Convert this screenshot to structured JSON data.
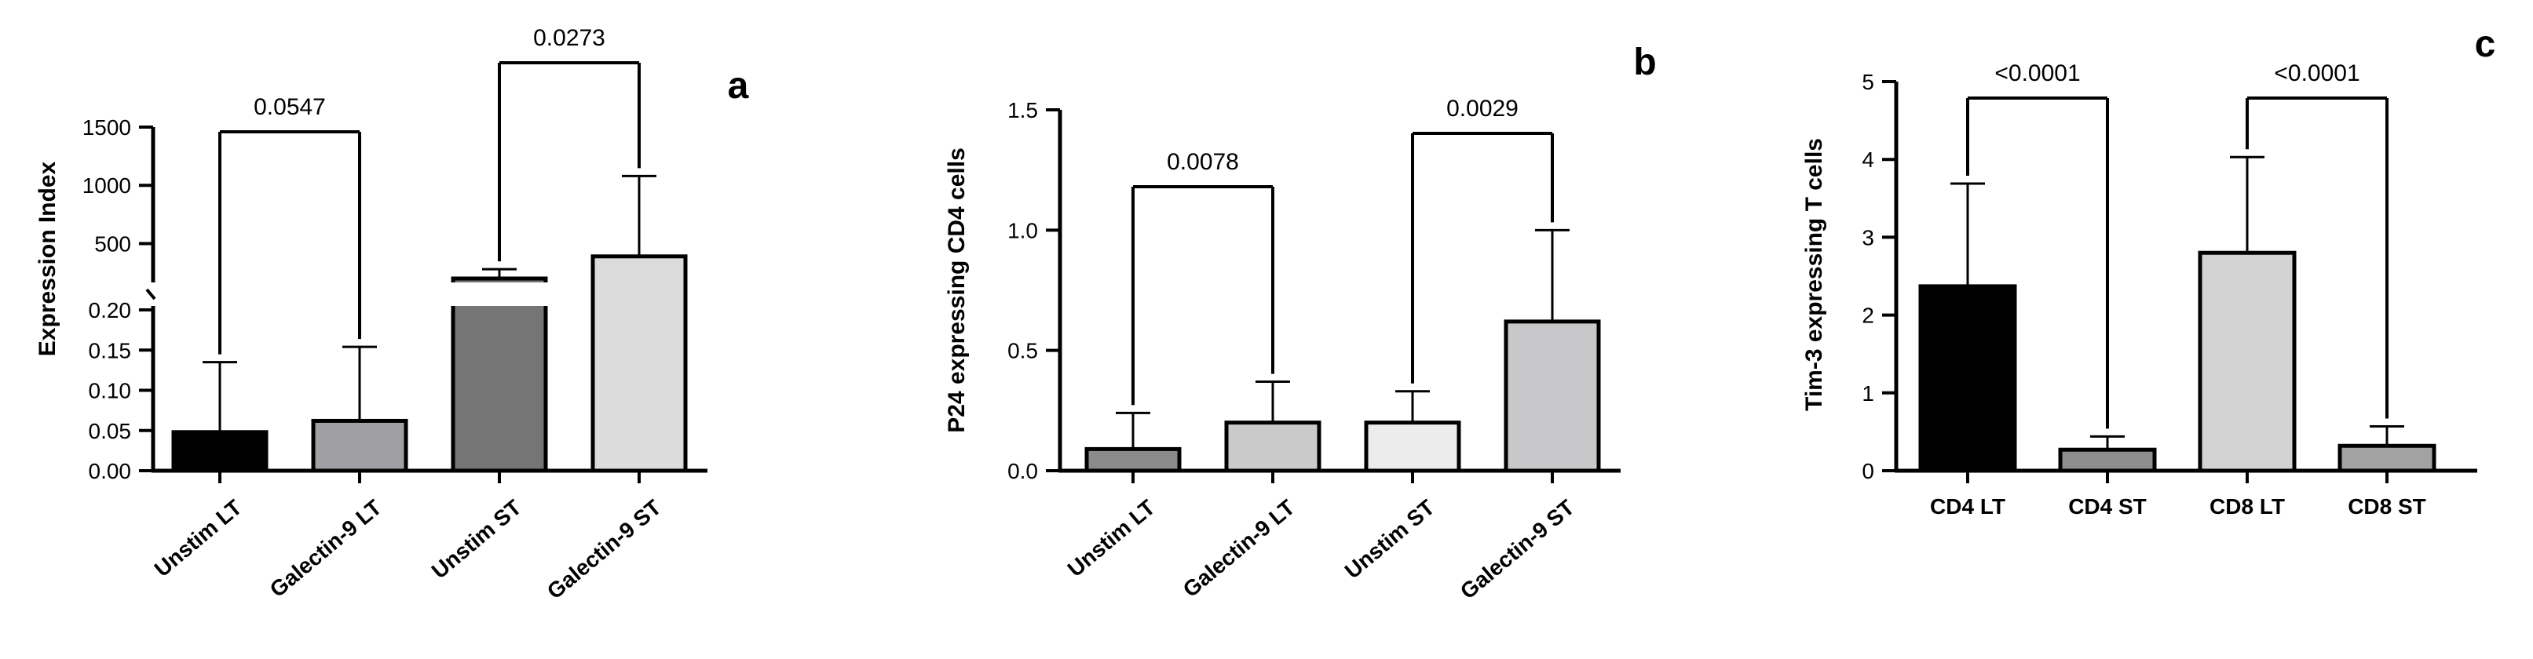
{
  "chart_data": [
    {
      "type": "bar",
      "panel_label": "a",
      "ylabel": "Expression Index",
      "categories": [
        "Unstim LT",
        "Galectin-9 LT",
        "Unstim ST",
        "Galectin-9 ST"
      ],
      "values": [
        0.048,
        0.062,
        200,
        390
      ],
      "errors": [
        0.087,
        0.092,
        80,
        690
      ],
      "colors": [
        "#000000",
        "#a0a0a4",
        "#757575",
        "#dcdcdc"
      ],
      "y_axis_break": true,
      "ylim_lower": [
        0,
        0.2
      ],
      "ylim_upper": [
        0,
        1500
      ],
      "yticks_lower": [
        "0.00",
        "0.05",
        "0.10",
        "0.15",
        "0.20"
      ],
      "yticks_upper": [
        "500",
        "1000",
        "1500"
      ],
      "comparisons": [
        {
          "from": "Unstim LT",
          "to": "Galectin-9 LT",
          "p": "0.0547"
        },
        {
          "from": "Unstim ST",
          "to": "Galectin-9 ST",
          "p": "0.0273"
        }
      ]
    },
    {
      "type": "bar",
      "panel_label": "b",
      "ylabel": "P24 expressing CD4 cells",
      "categories": [
        "Unstim LT",
        "Galectin-9 LT",
        "Unstim ST",
        "Galectin-9 ST"
      ],
      "values": [
        0.09,
        0.2,
        0.2,
        0.62
      ],
      "errors": [
        0.15,
        0.17,
        0.13,
        0.38
      ],
      "colors": [
        "#8a8a8a",
        "#cacaca",
        "#ececec",
        "#c8c8ca"
      ],
      "ylim": [
        0,
        1.5
      ],
      "yticks": [
        "0.0",
        "0.5",
        "1.0",
        "1.5"
      ],
      "comparisons": [
        {
          "from": "Unstim LT",
          "to": "Galectin-9 LT",
          "p": "0.0078"
        },
        {
          "from": "Unstim ST",
          "to": "Galectin-9 ST",
          "p": "0.0029"
        }
      ]
    },
    {
      "type": "bar",
      "panel_label": "c",
      "ylabel": "Tim-3 expressing T cells",
      "categories": [
        "CD4 LT",
        "CD4 ST",
        "CD8 LT",
        "CD8 ST"
      ],
      "values": [
        2.37,
        0.27,
        2.8,
        0.32
      ],
      "errors": [
        1.32,
        0.17,
        1.23,
        0.25
      ],
      "colors": [
        "#000000",
        "#8e8e8e",
        "#d2d2d2",
        "#a2a2a2"
      ],
      "ylim": [
        0,
        5
      ],
      "yticks": [
        "0",
        "1",
        "2",
        "3",
        "4",
        "5"
      ],
      "comparisons": [
        {
          "from": "CD4 LT",
          "to": "CD4 ST",
          "p": "<0.0001"
        },
        {
          "from": "CD8 LT",
          "to": "CD8 ST",
          "p": "<0.0001"
        }
      ]
    }
  ]
}
